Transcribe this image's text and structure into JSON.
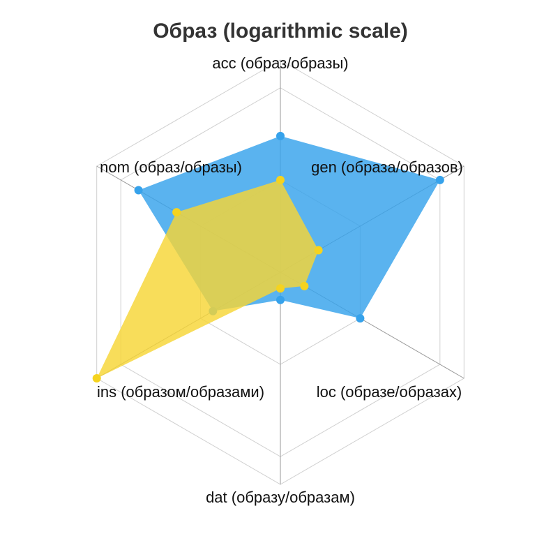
{
  "chart_data": {
    "type": "radar",
    "title": "Образ (logarithmic scale)",
    "scale": "logarithmic",
    "rmax": 200,
    "axes": [
      "acc (образ/образы)",
      "gen (образа/образов)",
      "loc (образе/образах)",
      "dat (образу/образам)",
      "ins (образом/образами)",
      "nom (образ/образы)"
    ],
    "series": [
      {
        "color": "#36a2eb",
        "fill": "rgba(54,162,235,0.82)",
        "values": [
          30,
          100,
          10,
          2,
          7,
          60
        ]
      },
      {
        "color": "#f5d31f",
        "fill": "rgba(246,214,54,0.82)",
        "values": [
          10,
          3,
          2,
          1.5,
          200,
          20
        ]
      }
    ],
    "grid": true,
    "legend": "none"
  }
}
